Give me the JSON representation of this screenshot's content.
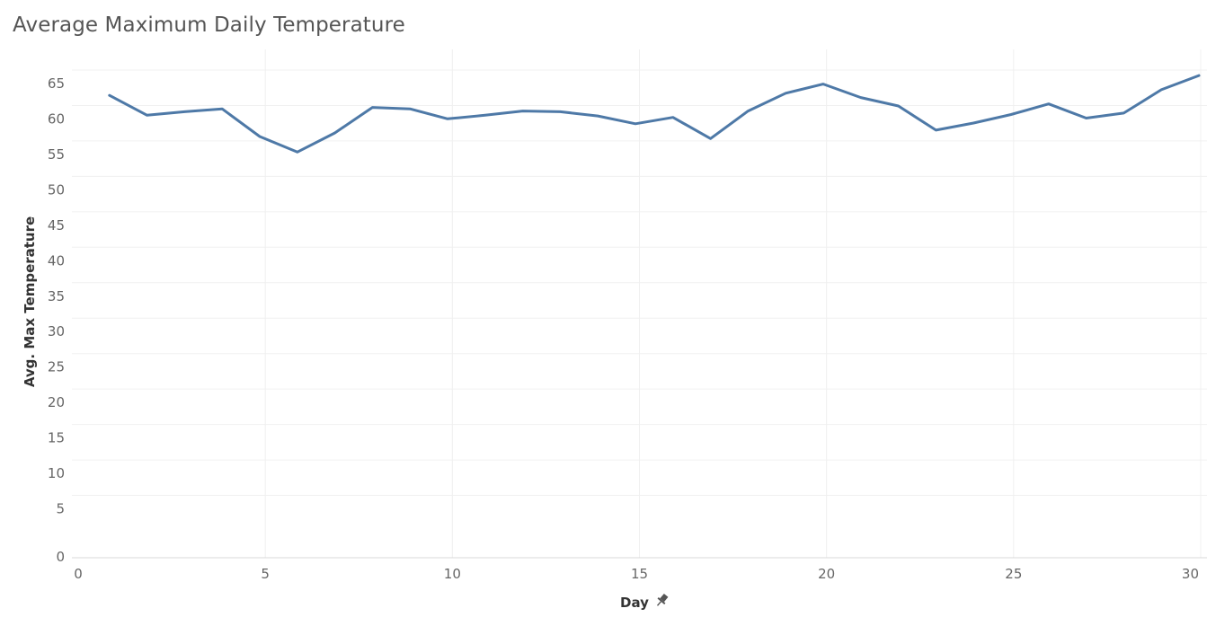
{
  "chart_data": {
    "type": "line",
    "title": "Average Maximum Daily Temperature",
    "xlabel": "Day",
    "ylabel": "Avg. Max Temperature",
    "xlim": [
      0,
      30
    ],
    "ylim": [
      0,
      65
    ],
    "x_ticks": [
      0,
      5,
      10,
      15,
      20,
      25,
      30
    ],
    "y_ticks": [
      0,
      5,
      10,
      15,
      20,
      25,
      30,
      35,
      40,
      45,
      50,
      55,
      60,
      65
    ],
    "grid": true,
    "series": [
      {
        "color": "#4e79a7",
        "x": [
          1,
          2,
          3,
          4,
          5,
          6,
          7,
          8,
          9,
          10,
          11,
          12,
          13,
          14,
          15,
          16,
          17,
          18,
          19,
          20,
          21,
          22,
          23,
          24,
          25,
          26,
          27,
          28,
          29,
          30
        ],
        "values": [
          63.2,
          60.4,
          60.9,
          61.3,
          57.4,
          55.2,
          57.9,
          61.5,
          61.3,
          59.9,
          60.4,
          61.0,
          60.9,
          60.3,
          59.2,
          60.1,
          57.1,
          61.0,
          63.5,
          64.8,
          62.9,
          61.7,
          58.3,
          59.3,
          60.5,
          62.0,
          60.0,
          60.7,
          64.0,
          66.0
        ]
      }
    ],
    "pin_icon": "pin-icon"
  }
}
